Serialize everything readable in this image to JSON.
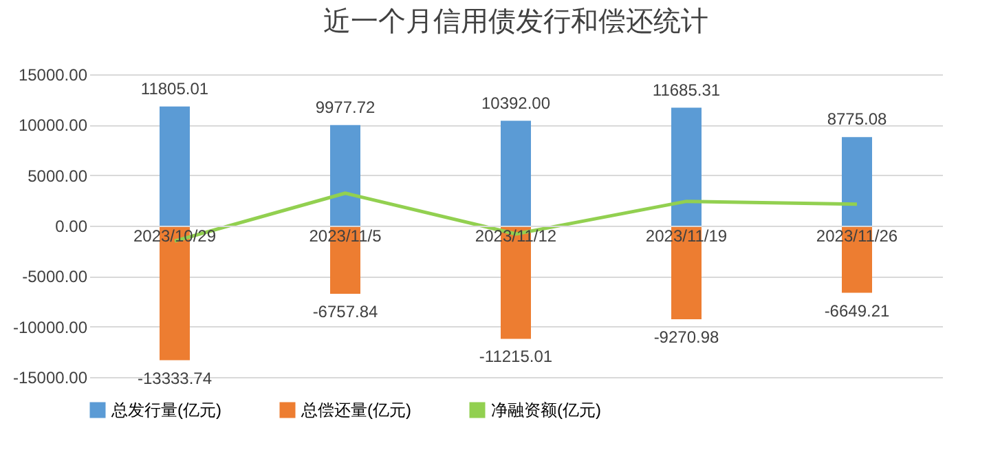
{
  "chart_data": {
    "type": "bar",
    "title": "近一个月信用债发行和偿还统计",
    "stacked": true,
    "categories": [
      "2023/10/29",
      "2023/11/5",
      "2023/11/12",
      "2023/11/19",
      "2023/11/26"
    ],
    "series": [
      {
        "name": "总发行量(亿元)",
        "color": "#5b9bd5",
        "values": [
          11805.01,
          9977.72,
          10392.0,
          11685.31,
          8775.08
        ],
        "value_labels": [
          "11805.01",
          "9977.72",
          "10392.00",
          "11685.31",
          "8775.08"
        ]
      },
      {
        "name": "总偿还量(亿元)",
        "color": "#ed7d31",
        "values": [
          -13333.74,
          -6757.84,
          -11215.01,
          -9270.98,
          -6649.21
        ],
        "value_labels": [
          "-13333.74",
          "-6757.84",
          "-11215.01",
          "-9270.98",
          "-6649.21"
        ]
      },
      {
        "name": "净融资额(亿元)",
        "type": "line",
        "color": "#92d050",
        "values": [
          -1530,
          3220,
          -820,
          2410,
          2130
        ]
      }
    ],
    "ylim": [
      -15000,
      15000
    ],
    "yticks": [
      {
        "value": -15000,
        "label": "-15000.00"
      },
      {
        "value": -10000,
        "label": "-10000.00"
      },
      {
        "value": -5000,
        "label": "-5000.00"
      },
      {
        "value": 0,
        "label": "0.00"
      },
      {
        "value": 5000,
        "label": "5000.00"
      },
      {
        "value": 10000,
        "label": "10000.00"
      },
      {
        "value": 15000,
        "label": "15000.00"
      }
    ],
    "grid": "y",
    "legend": "bottom",
    "marker": "none",
    "line_style": "solid"
  }
}
